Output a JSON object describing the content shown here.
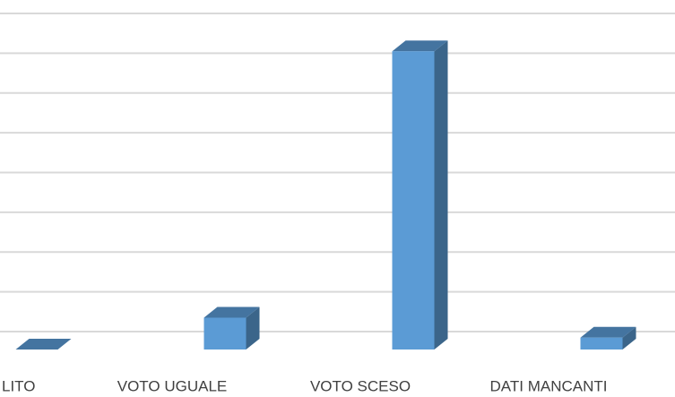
{
  "chart_data": {
    "type": "bar3d",
    "categories": [
      "LITO",
      "VOTO UGUALE",
      "VOTO SCESO",
      "DATI MANCANTI"
    ],
    "values": [
      0,
      0.8,
      7.5,
      0.3
    ],
    "color": "#5b9bd5",
    "ylim": [
      0,
      8
    ],
    "yticks": [
      0,
      1,
      2,
      3,
      4,
      5,
      6,
      7,
      8
    ],
    "grid": true
  }
}
